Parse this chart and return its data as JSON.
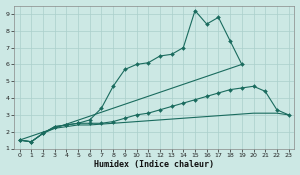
{
  "xlabel": "Humidex (Indice chaleur)",
  "xlim": [
    -0.5,
    23.5
  ],
  "ylim": [
    1,
    9.5
  ],
  "xticks": [
    0,
    1,
    2,
    3,
    4,
    5,
    6,
    7,
    8,
    9,
    10,
    11,
    12,
    13,
    14,
    15,
    16,
    17,
    18,
    19,
    20,
    21,
    22,
    23
  ],
  "yticks": [
    1,
    2,
    3,
    4,
    5,
    6,
    7,
    8,
    9
  ],
  "bg_color": "#cce8e4",
  "line_color": "#1a6b5e",
  "grid_color": "#aacfcb",
  "series": [
    {
      "x": [
        0,
        1,
        2,
        3,
        4,
        5,
        6,
        7,
        8,
        9,
        10,
        11,
        12,
        13,
        14,
        15,
        16,
        17,
        18,
        19
      ],
      "y": [
        1.5,
        1.4,
        1.9,
        2.3,
        2.4,
        2.5,
        2.7,
        3.4,
        4.7,
        5.7,
        6.0,
        6.1,
        6.5,
        6.6,
        7.0,
        9.2,
        8.4,
        8.8,
        7.4,
        6.0
      ],
      "markers": true
    },
    {
      "x": [
        0,
        19
      ],
      "y": [
        1.5,
        6.0
      ],
      "markers": false
    },
    {
      "x": [
        0,
        1,
        2,
        3,
        4,
        5,
        6,
        7,
        8,
        9,
        10,
        11,
        12,
        13,
        14,
        15,
        16,
        17,
        18,
        19,
        20,
        21,
        22,
        23
      ],
      "y": [
        1.5,
        1.4,
        1.9,
        2.3,
        2.4,
        2.5,
        2.5,
        2.5,
        2.6,
        2.8,
        3.0,
        3.1,
        3.3,
        3.5,
        3.7,
        3.9,
        4.1,
        4.3,
        4.5,
        4.6,
        4.7,
        4.4,
        3.3,
        3.0
      ],
      "markers": true
    },
    {
      "x": [
        0,
        1,
        2,
        3,
        4,
        5,
        6,
        7,
        8,
        9,
        10,
        11,
        12,
        13,
        14,
        15,
        16,
        17,
        18,
        19,
        20,
        21,
        22,
        23
      ],
      "y": [
        1.5,
        1.4,
        1.9,
        2.2,
        2.3,
        2.4,
        2.4,
        2.45,
        2.5,
        2.55,
        2.6,
        2.65,
        2.7,
        2.75,
        2.8,
        2.85,
        2.9,
        2.95,
        3.0,
        3.05,
        3.1,
        3.1,
        3.1,
        3.0
      ],
      "markers": false
    }
  ]
}
